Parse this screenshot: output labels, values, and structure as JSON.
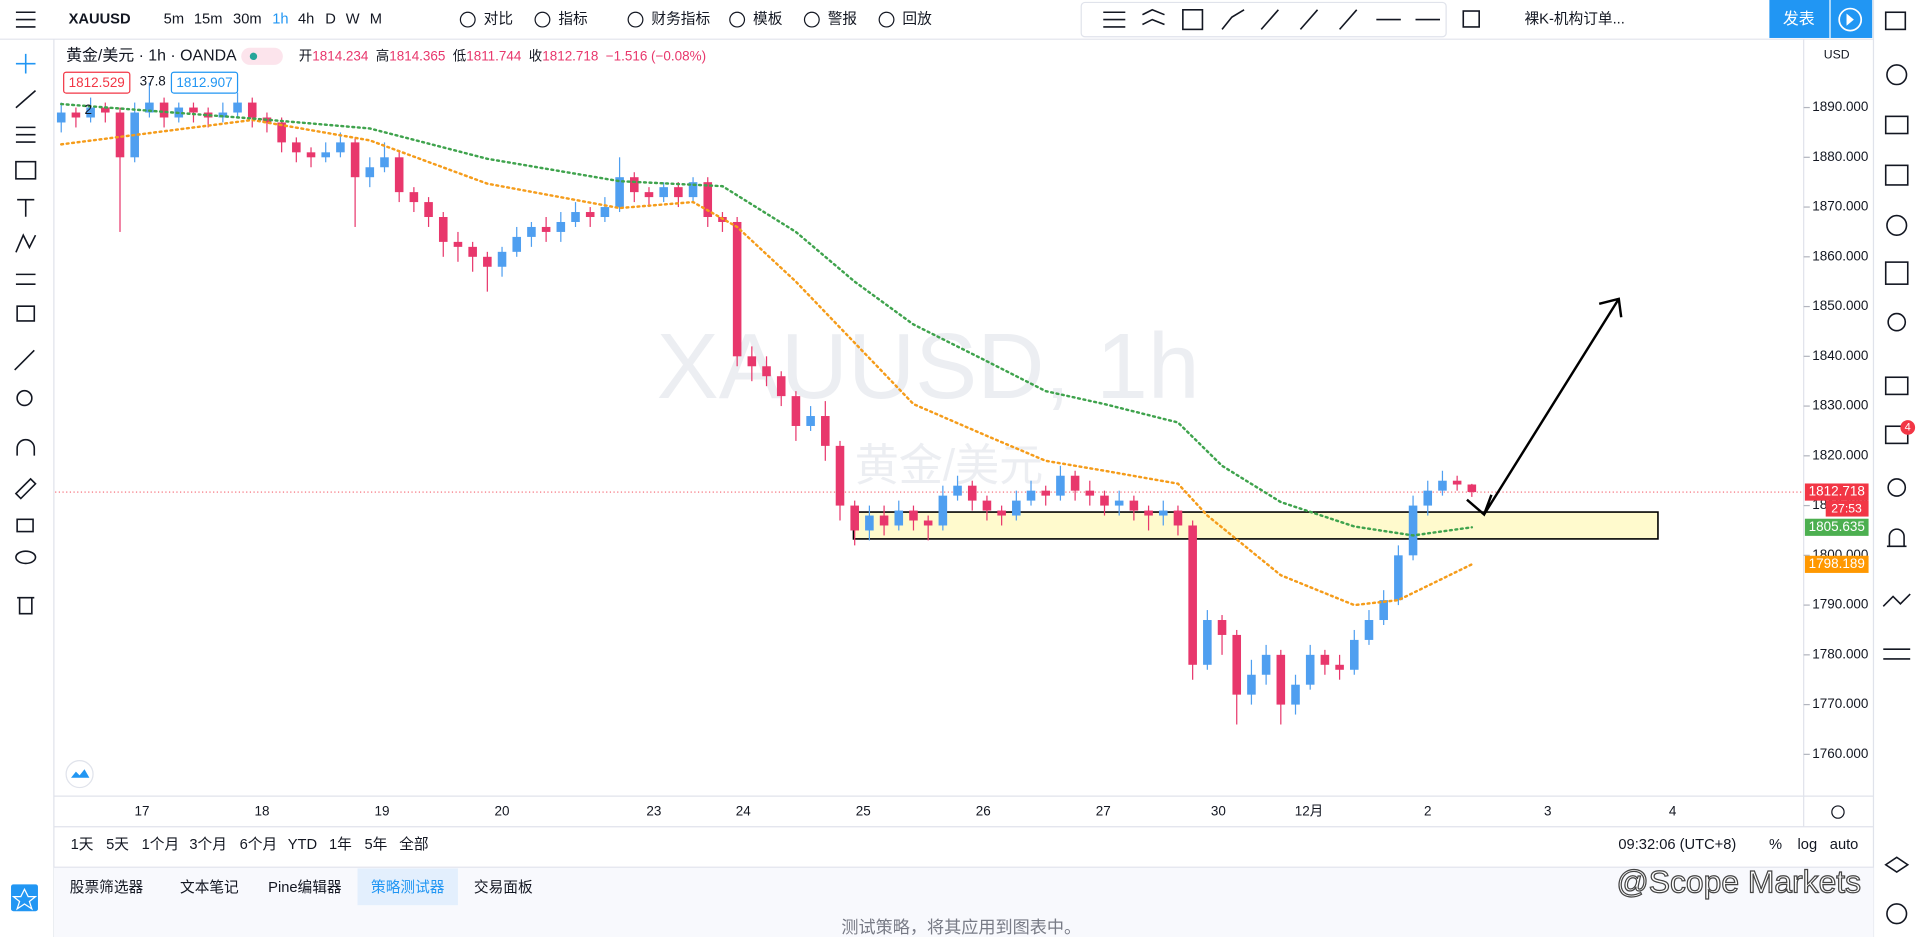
{
  "toolbar": {
    "symbol": "XAUUSD",
    "intervals": [
      "5m",
      "15m",
      "30m",
      "1h",
      "4h",
      "D",
      "W",
      "M"
    ],
    "active_interval": "1h",
    "buttons": [
      "对比",
      "指标",
      "财务指标",
      "模板",
      "警报",
      "回放"
    ],
    "layout_name": "裸K-机构订单...",
    "publish": "发表"
  },
  "legend": {
    "title": "黄金/美元 · 1h · OANDA",
    "ohlc_labels": [
      "开",
      "高",
      "低",
      "收"
    ],
    "change": "−1.516 (−0.08%)",
    "indicator_count": 2,
    "bid": 1812.529,
    "spread": 37.8,
    "ask": 1812.907
  },
  "chart": {
    "watermark": "XAUUSD, 1h",
    "watermark_sub": "黄金/美元",
    "currency": "USD",
    "up_color": "#4f9ff0",
    "down_color": "#e8376c",
    "candles": {
      "open": [
        1887,
        1889,
        1888,
        1890,
        1889,
        1880,
        1889,
        1891,
        1888,
        1890,
        1889,
        1888,
        1889,
        1891,
        1888,
        1887,
        1883,
        1881,
        1880,
        1881,
        1883,
        1876,
        1878,
        1880,
        1873,
        1871,
        1868,
        1863,
        1862,
        1860,
        1858,
        1861,
        1864,
        1866,
        1865,
        1867,
        1869,
        1868,
        1870,
        1876,
        1873,
        1872,
        1874,
        1872,
        1875,
        1868,
        1867,
        1840,
        1838,
        1836,
        1832,
        1826,
        1828,
        1822,
        1810,
        1805,
        1808,
        1806,
        1809,
        1807,
        1806,
        1812,
        1814,
        1811,
        1809,
        1808,
        1811,
        1813,
        1812,
        1816,
        1813,
        1812,
        1810,
        1811,
        1809,
        1808,
        1809,
        1806,
        1778,
        1787,
        1784,
        1772,
        1776,
        1780,
        1770,
        1774,
        1780,
        1778,
        1777,
        1783,
        1787,
        1791,
        1800,
        1810,
        1813,
        1815,
        1814.234
      ],
      "high": [
        1891,
        1890,
        1892,
        1891,
        1890,
        1891,
        1895,
        1892,
        1891,
        1891,
        1890,
        1891,
        1893,
        1892,
        1889,
        1888,
        1884,
        1882,
        1883,
        1885,
        1884,
        1880,
        1883,
        1881,
        1874,
        1872,
        1869,
        1865,
        1863,
        1861,
        1862,
        1866,
        1867,
        1868,
        1869,
        1871,
        1870,
        1872,
        1880,
        1877,
        1874,
        1875,
        1875,
        1876,
        1876,
        1869,
        1868,
        1842,
        1840,
        1837,
        1833,
        1830,
        1831,
        1823,
        1811,
        1810,
        1810,
        1811,
        1810,
        1808,
        1814,
        1816,
        1815,
        1812,
        1810,
        1813,
        1815,
        1814,
        1818,
        1817,
        1815,
        1813,
        1813,
        1812,
        1810,
        1811,
        1810,
        1807,
        1789,
        1788,
        1785,
        1779,
        1782,
        1781,
        1776,
        1782,
        1781,
        1780,
        1785,
        1789,
        1793,
        1802,
        1812,
        1815,
        1817,
        1816,
        1814.365
      ],
      "low": [
        1885,
        1886,
        1887,
        1887,
        1865,
        1879,
        1888,
        1886,
        1887,
        1887,
        1886,
        1887,
        1888,
        1886,
        1885,
        1881,
        1879,
        1878,
        1879,
        1880,
        1866,
        1874,
        1877,
        1871,
        1869,
        1866,
        1860,
        1859,
        1857,
        1853,
        1856,
        1860,
        1862,
        1863,
        1863,
        1866,
        1866,
        1867,
        1869,
        1871,
        1870,
        1871,
        1870,
        1871,
        1866,
        1865,
        1838,
        1835,
        1834,
        1830,
        1823,
        1825,
        1819,
        1807,
        1802,
        1803,
        1804,
        1805,
        1805,
        1803,
        1805,
        1811,
        1809,
        1807,
        1806,
        1807,
        1810,
        1810,
        1811,
        1811,
        1810,
        1808,
        1808,
        1807,
        1805,
        1806,
        1804,
        1775,
        1777,
        1780,
        1766,
        1770,
        1774,
        1766,
        1768,
        1773,
        1776,
        1775,
        1776,
        1782,
        1786,
        1790,
        1799,
        1808,
        1812,
        1813,
        1811.744
      ],
      "close": [
        1889,
        1888,
        1890,
        1889,
        1880,
        1889,
        1891,
        1888,
        1890,
        1889,
        1888,
        1889,
        1891,
        1888,
        1887,
        1883,
        1881,
        1880,
        1881,
        1883,
        1876,
        1878,
        1880,
        1873,
        1871,
        1868,
        1863,
        1862,
        1860,
        1858,
        1861,
        1864,
        1866,
        1865,
        1867,
        1869,
        1868,
        1870,
        1876,
        1873,
        1872,
        1874,
        1872,
        1875,
        1868,
        1867,
        1840,
        1838,
        1836,
        1832,
        1826,
        1828,
        1822,
        1810,
        1805,
        1808,
        1806,
        1809,
        1807,
        1806,
        1812,
        1814,
        1811,
        1809,
        1808,
        1811,
        1813,
        1812,
        1816,
        1813,
        1812,
        1810,
        1811,
        1809,
        1808,
        1809,
        1806,
        1778,
        1787,
        1784,
        1772,
        1776,
        1780,
        1770,
        1774,
        1780,
        1778,
        1777,
        1783,
        1787,
        1791,
        1800,
        1810,
        1813,
        1815,
        1814.234,
        1812.718
      ]
    },
    "moving_averages": [
      {
        "color": "#f59c1a",
        "x": [
          0,
          13,
          21,
          29,
          38,
          43,
          46,
          50,
          54,
          58,
          63,
          67,
          71,
          76,
          78,
          83,
          88,
          91,
          96
        ],
        "values": [
          1882.6,
          1887.5,
          1883.4,
          1874.7,
          1869.8,
          1871,
          1866,
          1855,
          1842.7,
          1830.4,
          1824,
          1819,
          1817,
          1814.4,
          1808,
          1796,
          1790,
          1791,
          1798.189
        ]
      },
      {
        "color": "#3fa34d",
        "x": [
          0,
          13,
          21,
          29,
          38,
          45,
          50,
          54,
          58,
          63,
          67,
          71,
          76,
          79,
          83,
          88,
          92,
          96
        ],
        "values": [
          1890.7,
          1887.8,
          1885.8,
          1879.7,
          1875.2,
          1874.2,
          1865,
          1855,
          1846.4,
          1839,
          1833,
          1830.4,
          1826.7,
          1818,
          1810.7,
          1805.8,
          1804,
          1805.635
        ]
      }
    ],
    "zone": [
      1803.3,
      1808.7
    ],
    "ylim": [
      1751.6,
      1903.0
    ],
    "yticks": [
      {
        "value": 1760,
        "label": "1760.000"
      },
      {
        "value": 1770,
        "label": "1770.000"
      },
      {
        "value": 1780,
        "label": "1780.000"
      },
      {
        "value": 1790,
        "label": "1790.000"
      },
      {
        "value": 1800,
        "label": "1800.000"
      },
      {
        "value": 1810,
        "label": "1810.000"
      },
      {
        "value": 1820,
        "label": "1820.000"
      },
      {
        "value": 1830,
        "label": "1830.000"
      },
      {
        "value": 1840,
        "label": "1840.000"
      },
      {
        "value": 1850,
        "label": "1850.000"
      },
      {
        "value": 1860,
        "label": "1860.000"
      },
      {
        "value": 1870,
        "label": "1870.000"
      },
      {
        "value": 1880,
        "label": "1880.000"
      },
      {
        "value": 1890,
        "label": "1890.000"
      }
    ],
    "price_tags": [
      {
        "value": 1812.718,
        "color": "#f23645"
      },
      {
        "value": 1805.635,
        "color": "#4caf50"
      },
      {
        "value": 1798.189,
        "color": "#ff9800"
      }
    ],
    "countdown": "27:53"
  },
  "time_axis": [
    "17",
    "18",
    "19",
    "20",
    "23",
    "24",
    "25",
    "26",
    "27",
    "30",
    "12月",
    "2",
    "3",
    "4"
  ],
  "bottom_bar": {
    "ranges": [
      "1天",
      "5天",
      "1个月",
      "3个月",
      "6个月",
      "YTD",
      "1年",
      "5年",
      "全部"
    ],
    "time": "09:32:06 (UTC+8)",
    "options": [
      "%",
      "log",
      "auto"
    ]
  },
  "tabs": [
    "股票筛选器",
    "文本笔记",
    "Pine编辑器",
    "策略测试器",
    "交易面板"
  ],
  "footer": "测试策略，将其应用到图表中。",
  "notification_badge": 4,
  "watermark": "@Scope Markets"
}
